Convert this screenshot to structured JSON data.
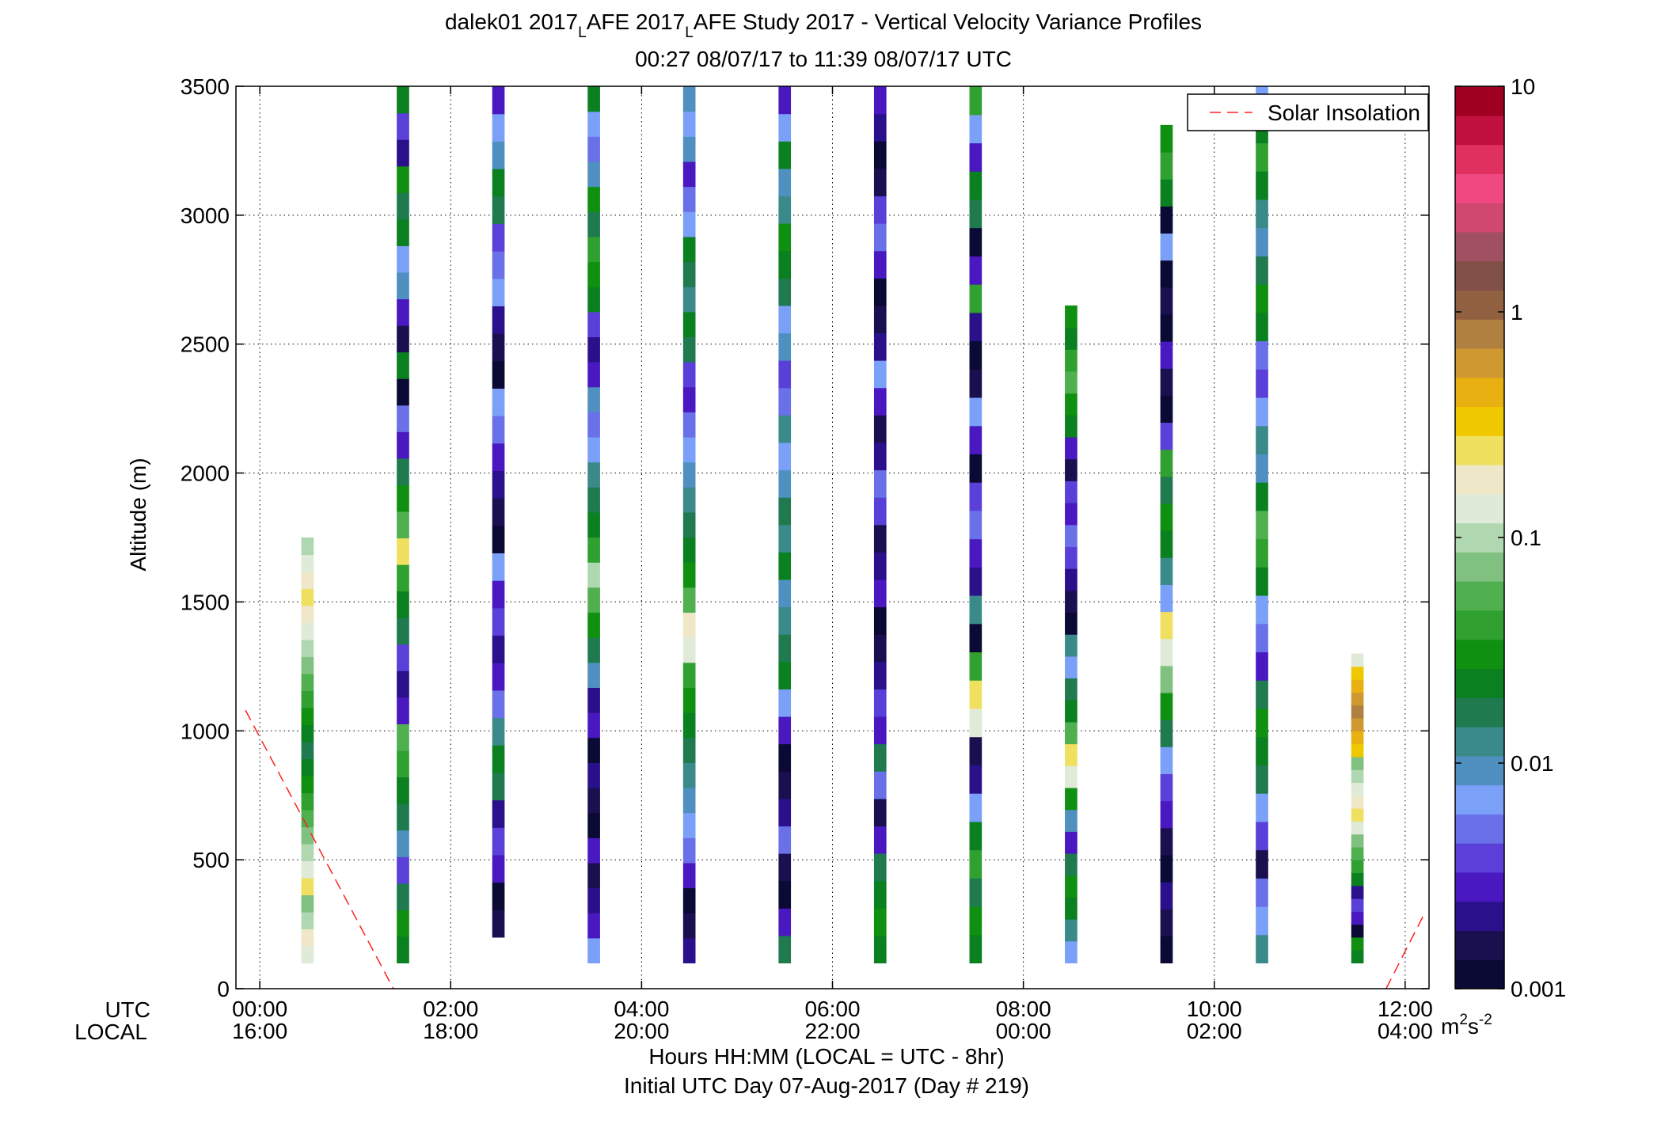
{
  "chart_data": {
    "type": "heatmap",
    "title_parts": [
      "dalek01 2017",
      "L",
      "AFE 2017",
      "L",
      "AFE Study 2017 - Vertical Velocity Variance Profiles"
    ],
    "subtitle": "00:27 08/07/17 to 11:39 08/07/17  UTC",
    "ylabel": "Altitude (m)",
    "xlabel": "Hours HH:MM  (LOCAL = UTC - 8hr)",
    "xlabel2": "Initial UTC Day 07-Aug-2017 (Day # 219)",
    "utc_label": "UTC",
    "local_label": "LOCAL",
    "xlim": [
      -0.25,
      12.25
    ],
    "ylim": [
      0,
      3500
    ],
    "grid": true,
    "y_ticks": [
      0,
      500,
      1000,
      1500,
      2000,
      2500,
      3000,
      3500
    ],
    "x_ticks": [
      {
        "hour": 0,
        "utc": "00:00",
        "local": "16:00"
      },
      {
        "hour": 2,
        "utc": "02:00",
        "local": "18:00"
      },
      {
        "hour": 4,
        "utc": "04:00",
        "local": "20:00"
      },
      {
        "hour": 6,
        "utc": "06:00",
        "local": "22:00"
      },
      {
        "hour": 8,
        "utc": "08:00",
        "local": "00:00"
      },
      {
        "hour": 10,
        "utc": "10:00",
        "local": "02:00"
      },
      {
        "hour": 12,
        "utc": "12:00",
        "local": "04:00"
      }
    ],
    "legend": {
      "label": "Solar Insolation",
      "position": "top-right",
      "color": "#ff2020",
      "style": "dashed"
    },
    "solar_insolation": [
      {
        "x": [
          -0.15,
          1.4
        ],
        "y": [
          1080,
          0
        ]
      },
      {
        "x": [
          11.8,
          12.2
        ],
        "y": [
          0,
          290
        ]
      }
    ],
    "colorbar": {
      "scale": "log",
      "range": [
        0.001,
        10
      ],
      "tick_labels": [
        "0.001",
        "0.01",
        "0.1",
        "1",
        "10"
      ],
      "units_base": "m",
      "units_exp1": "2",
      "units_mid": "s",
      "units_exp2": "-2",
      "colors": [
        "#0a0a35",
        "#1a1050",
        "#2a108a",
        "#4a18c0",
        "#5a40d8",
        "#6a70e8",
        "#7aa0f8",
        "#5090c0",
        "#3a8a8a",
        "#207a50",
        "#0a8020",
        "#109010",
        "#30a030",
        "#50b050",
        "#80c080",
        "#b0d8b0",
        "#e0ead8",
        "#eee8c8",
        "#f0e060",
        "#f0c800",
        "#e8b010",
        "#d09830",
        "#b08040",
        "#906040",
        "#805048",
        "#a05060",
        "#d04870",
        "#f04880",
        "#e03060",
        "#c01040",
        "#a00020"
      ]
    },
    "profiles": [
      {
        "time": 0.5,
        "altitudes": [
          100,
          1750
        ],
        "color_indices": [
          16,
          17,
          15,
          14,
          18,
          16,
          15,
          14,
          13,
          12,
          11,
          10,
          9,
          10,
          11,
          12,
          13,
          14,
          15,
          16,
          17,
          18,
          17,
          16,
          15
        ]
      },
      {
        "time": 1.5,
        "altitudes": [
          100,
          3500
        ],
        "color_indices": [
          10,
          11,
          9,
          4,
          7,
          9,
          10,
          12,
          13,
          3,
          2,
          4,
          9,
          10,
          12,
          18,
          13,
          11,
          9,
          3,
          5,
          0,
          10,
          1,
          3,
          7,
          6,
          10,
          9,
          11,
          2,
          4,
          10
        ]
      },
      {
        "time": 2.5,
        "altitudes": [
          200,
          3500
        ],
        "color_indices": [
          1,
          0,
          3,
          4,
          2,
          9,
          10,
          8,
          5,
          3,
          2,
          4,
          3,
          6,
          0,
          1,
          2,
          3,
          5,
          6,
          0,
          1,
          2,
          6,
          5,
          4,
          9,
          10,
          7,
          6,
          3
        ]
      },
      {
        "time": 3.5,
        "altitudes": [
          100,
          3500
        ],
        "color_indices": [
          6,
          3,
          2,
          1,
          3,
          0,
          1,
          2,
          0,
          3,
          2,
          7,
          9,
          11,
          13,
          15,
          12,
          10,
          9,
          8,
          6,
          5,
          7,
          3,
          2,
          4,
          10,
          11,
          12,
          9,
          11,
          7,
          5,
          6,
          10
        ]
      },
      {
        "time": 4.5,
        "altitudes": [
          100,
          3500
        ],
        "color_indices": [
          2,
          1,
          0,
          3,
          5,
          6,
          7,
          8,
          9,
          10,
          11,
          12,
          16,
          17,
          13,
          11,
          10,
          9,
          8,
          7,
          6,
          5,
          3,
          4,
          9,
          10,
          8,
          9,
          10,
          6,
          5,
          3,
          7,
          6,
          7
        ]
      },
      {
        "time": 5.5,
        "altitudes": [
          100,
          3500
        ],
        "color_indices": [
          9,
          3,
          0,
          1,
          5,
          2,
          1,
          0,
          3,
          6,
          10,
          9,
          8,
          7,
          10,
          8,
          9,
          7,
          6,
          8,
          5,
          4,
          7,
          6,
          9,
          10,
          11,
          8,
          7,
          10,
          6,
          3
        ]
      },
      {
        "time": 6.5,
        "altitudes": [
          100,
          3500
        ],
        "color_indices": [
          10,
          11,
          10,
          9,
          3,
          1,
          5,
          9,
          3,
          4,
          2,
          1,
          0,
          3,
          2,
          1,
          4,
          5,
          2,
          1,
          3,
          6,
          2,
          1,
          0,
          3,
          5,
          4,
          1,
          0,
          2,
          3
        ]
      },
      {
        "time": 7.5,
        "altitudes": [
          100,
          3500
        ],
        "color_indices": [
          10,
          11,
          9,
          12,
          10,
          6,
          2,
          1,
          16,
          18,
          12,
          0,
          8,
          2,
          3,
          5,
          4,
          0,
          3,
          6,
          1,
          0,
          2,
          12,
          3,
          0,
          9,
          10,
          3,
          6,
          12
        ]
      },
      {
        "time": 8.5,
        "altitudes": [
          100,
          2650
        ],
        "color_indices": [
          6,
          8,
          10,
          11,
          9,
          3,
          7,
          11,
          16,
          18,
          13,
          10,
          9,
          6,
          8,
          0,
          1,
          2,
          4,
          5,
          3,
          4,
          1,
          3,
          10,
          11,
          13,
          12,
          10,
          11
        ]
      },
      {
        "time": 9.5,
        "altitudes": [
          100,
          3350
        ],
        "color_indices": [
          0,
          1,
          2,
          0,
          1,
          3,
          4,
          6,
          9,
          11,
          14,
          16,
          18,
          6,
          8,
          10,
          11,
          9,
          12,
          4,
          0,
          1,
          3,
          0,
          1,
          0,
          6,
          0,
          10,
          12,
          11
        ]
      },
      {
        "time": 10.5,
        "altitudes": [
          100,
          3500
        ],
        "color_indices": [
          8,
          6,
          5,
          1,
          4,
          6,
          9,
          10,
          11,
          9,
          3,
          5,
          6,
          10,
          12,
          13,
          10,
          7,
          8,
          6,
          4,
          5,
          10,
          11,
          9,
          7,
          8,
          10,
          12,
          10,
          6
        ]
      },
      {
        "time": 11.5,
        "altitudes": [
          100,
          1300
        ],
        "color_indices": [
          10,
          11,
          0,
          3,
          4,
          2,
          10,
          12,
          13,
          14,
          16,
          18,
          17,
          16,
          15,
          14,
          19,
          20,
          21,
          22,
          21,
          20,
          19,
          16
        ]
      }
    ]
  }
}
